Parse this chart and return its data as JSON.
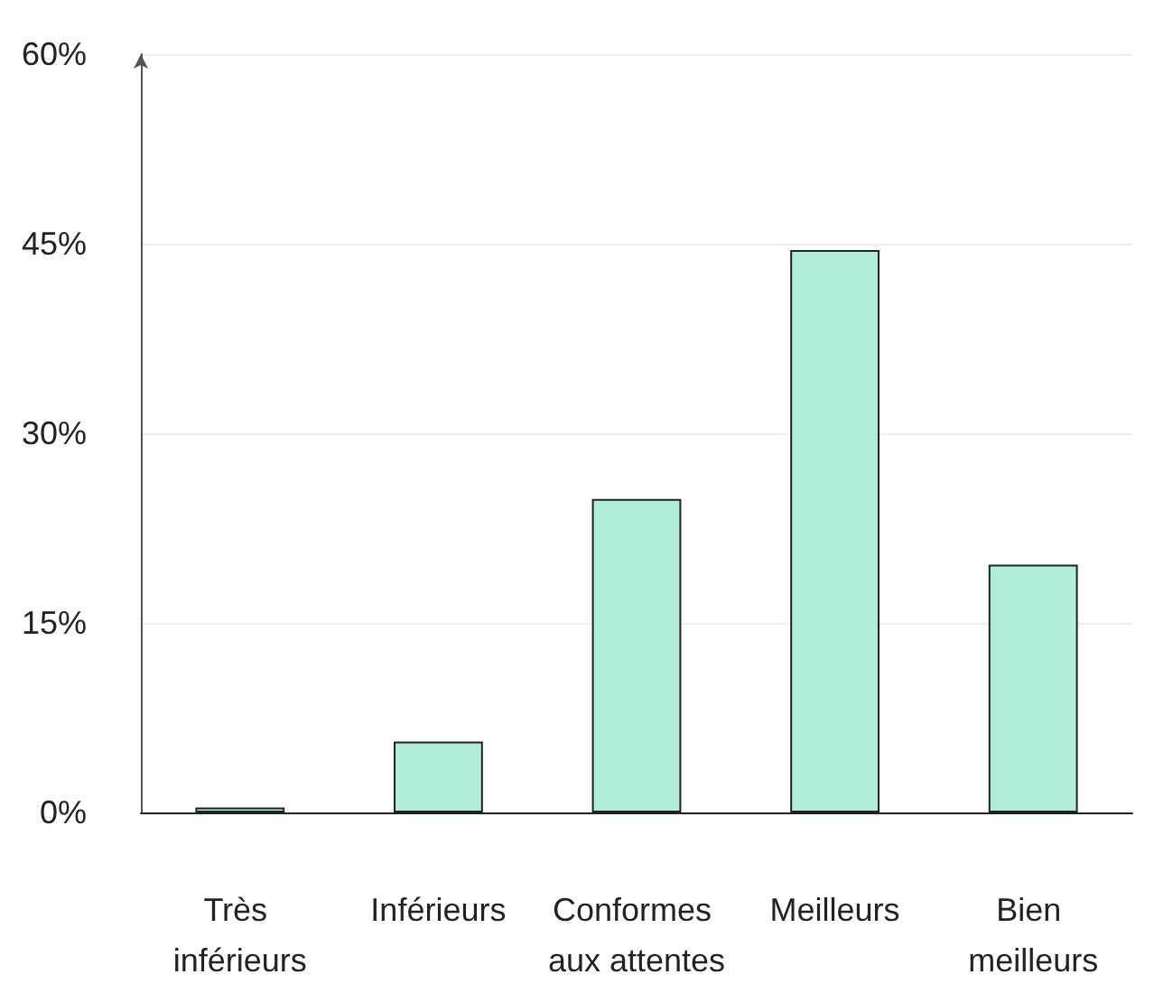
{
  "chart_data": {
    "type": "bar",
    "categories": [
      "Très inférieurs",
      "Inférieurs",
      "Conformes aux attentes",
      "Meilleurs",
      "Bien meilleurs"
    ],
    "values": [
      0.4,
      5.6,
      24.8,
      44.5,
      19.6
    ],
    "color": "#b0eed8",
    "ylim": [
      0,
      60
    ],
    "yticks": [
      {
        "value": 0,
        "label": "0%"
      },
      {
        "value": 15,
        "label": "15%"
      },
      {
        "value": 30,
        "label": "30%"
      },
      {
        "value": 45,
        "label": "45%"
      },
      {
        "value": 60,
        "label": "60%"
      }
    ],
    "grid": "y"
  }
}
